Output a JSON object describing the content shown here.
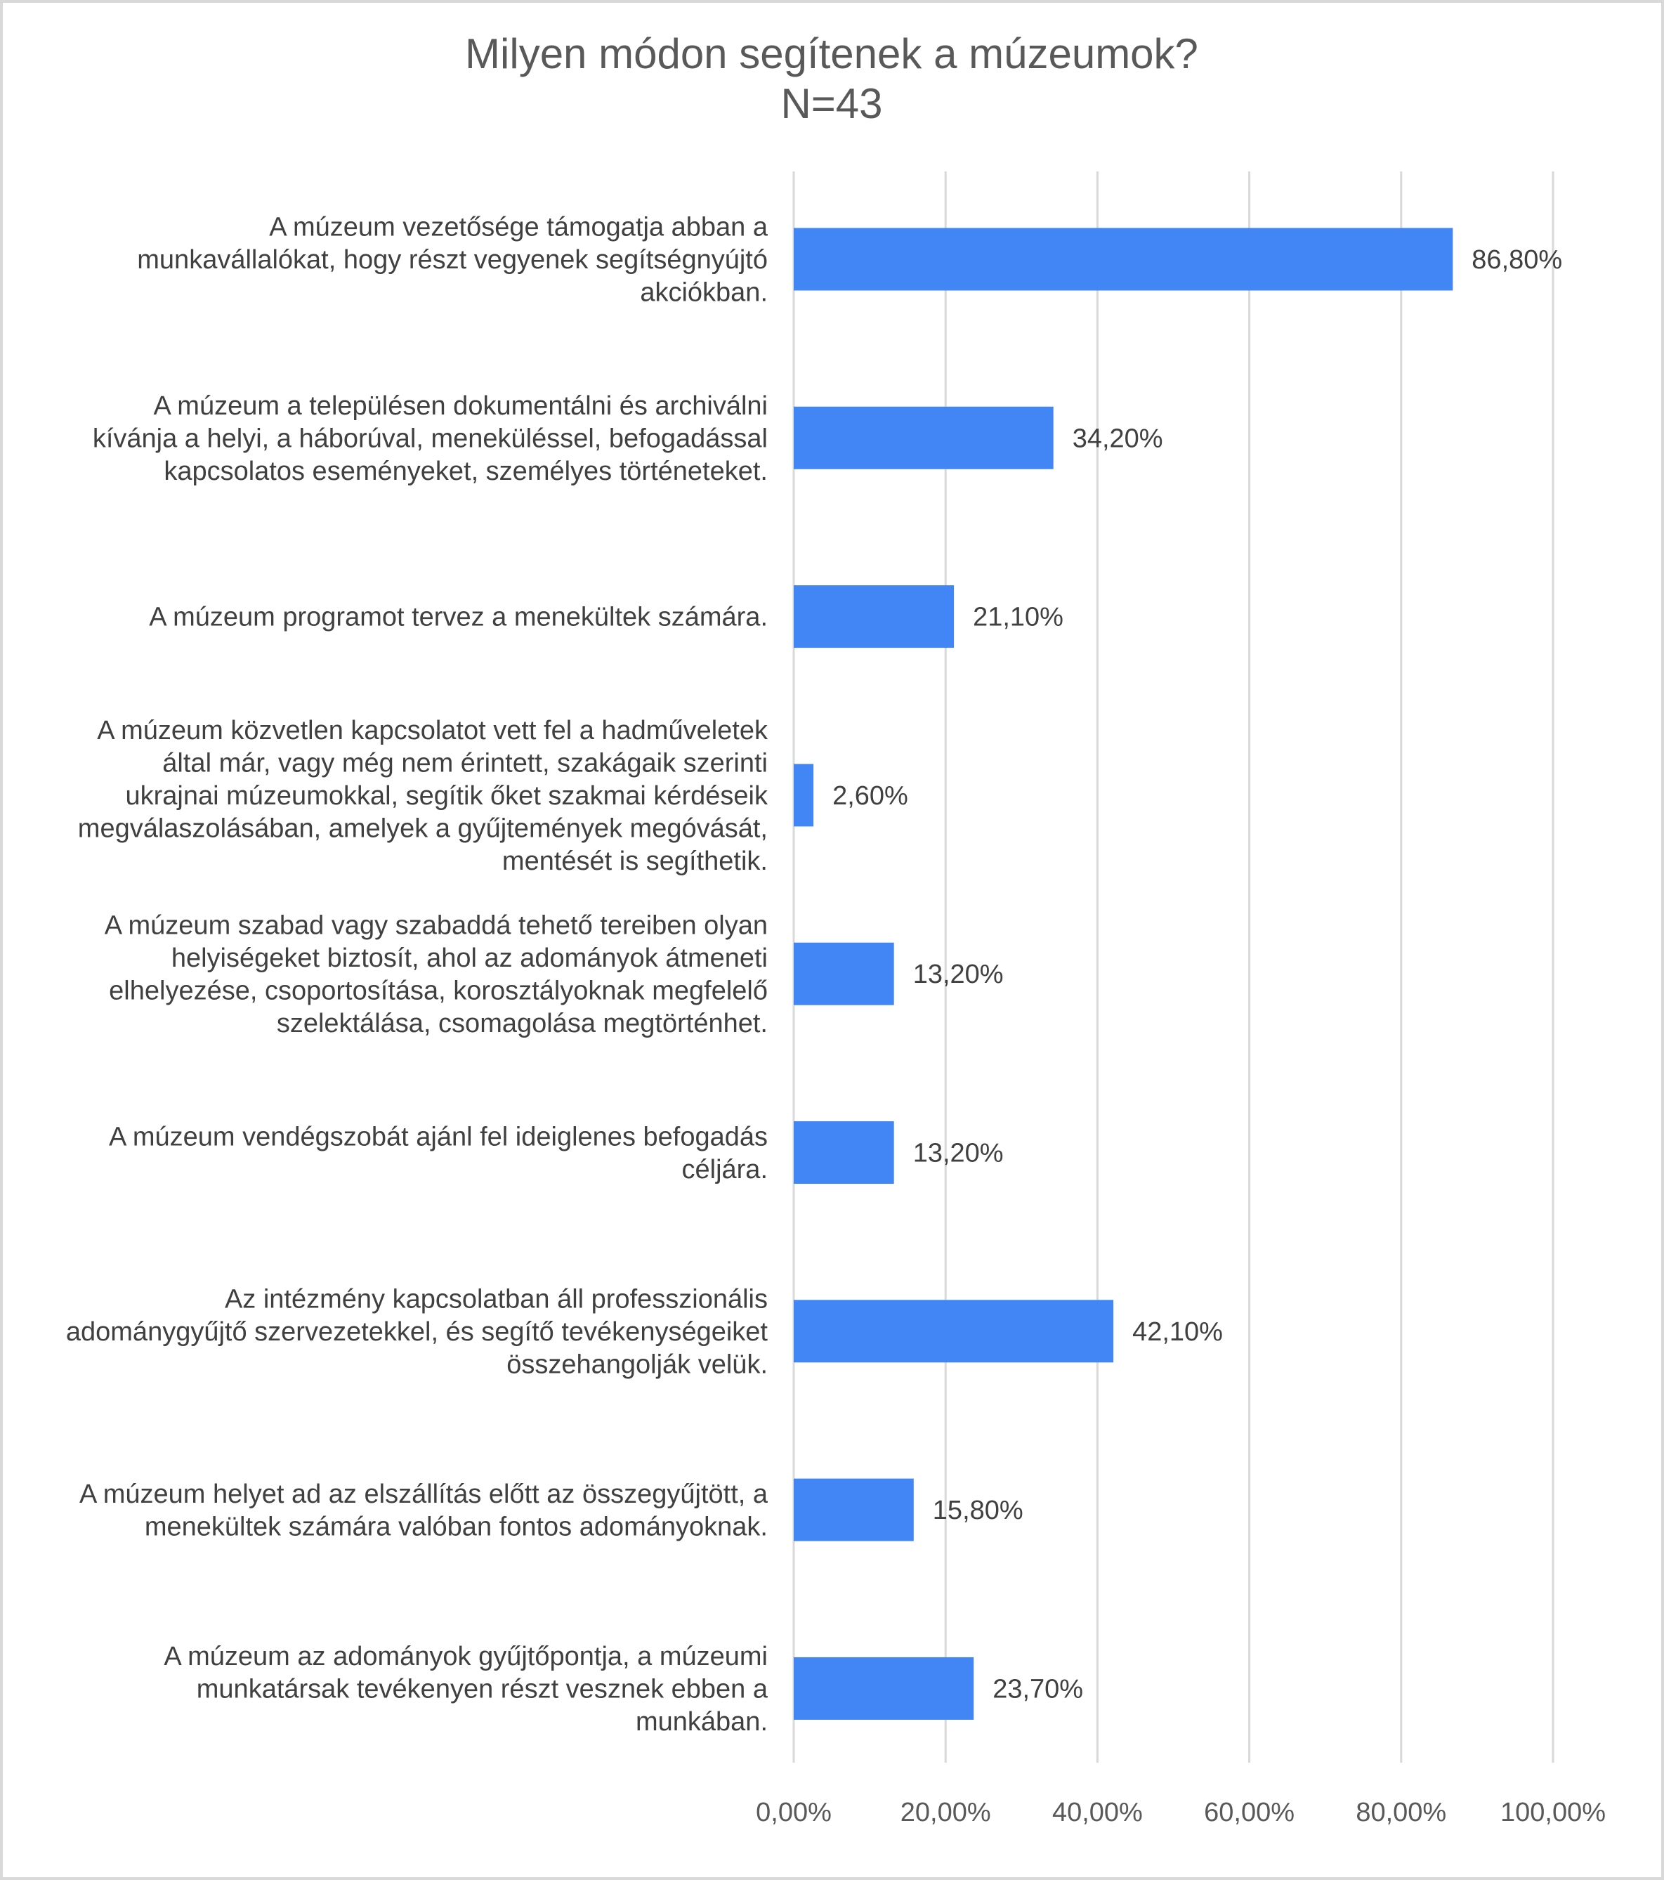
{
  "chart_data": {
    "type": "bar",
    "orientation": "horizontal",
    "title": [
      "Milyen módon segítenek a múzeumok?",
      "N=43"
    ],
    "categories": [
      [
        "A múzeum vezetősége támogatja abban a",
        "munkavállalókat, hogy részt vegyenek segítségnyújtó",
        "akciókban."
      ],
      [
        "A múzeum a településen dokumentálni és archiválni",
        "kívánja a helyi, a háborúval, meneküléssel, befogadással",
        "kapcsolatos eseményeket, személyes történeteket."
      ],
      [
        "A múzeum programot tervez a menekültek számára."
      ],
      [
        "A múzeum közvetlen kapcsolatot vett fel a hadműveletek",
        "által már, vagy még nem érintett, szakágaik szerinti",
        "ukrajnai múzeumokkal, segítik őket szakmai kérdéseik",
        "megválaszolásában, amelyek a gyűjtemények megóvását,",
        "mentését is segíthetik."
      ],
      [
        "A múzeum szabad vagy szabaddá tehető tereiben olyan",
        "helyiségeket biztosít, ahol az adományok átmeneti",
        "elhelyezése, csoportosítása, korosztályoknak megfelelő",
        "szelektálása, csomagolása megtörténhet."
      ],
      [
        "A múzeum vendégszobát ajánl fel ideiglenes befogadás",
        "céljára."
      ],
      [
        "Az intézmény kapcsolatban áll professzionális",
        "adománygyűjtő szervezetekkel, és segítő tevékenységeiket",
        "összehangolják velük."
      ],
      [
        "A múzeum helyet ad az elszállítás előtt az összegyűjtött, a",
        "menekültek számára valóban fontos adományoknak."
      ],
      [
        "A múzeum az adományok gyűjtőpontja, a múzeumi",
        "munkatársak tevékenyen részt vesznek ebben a",
        "munkában."
      ]
    ],
    "values": [
      86.8,
      34.2,
      21.1,
      2.6,
      13.2,
      13.2,
      42.1,
      15.8,
      23.7
    ],
    "value_labels": [
      "86,80%",
      "34,20%",
      "21,10%",
      "2,60%",
      "13,20%",
      "13,20%",
      "42,10%",
      "15,80%",
      "23,70%"
    ],
    "xlim": [
      0,
      100
    ],
    "xticks": [
      0,
      20,
      40,
      60,
      80,
      100
    ],
    "xtick_labels": [
      "0,00%",
      "20,00%",
      "40,00%",
      "60,00%",
      "80,00%",
      "100,00%"
    ],
    "xlabel": "",
    "ylabel": "",
    "grid": true,
    "legend": "none",
    "bar_color": "#4285f4"
  }
}
